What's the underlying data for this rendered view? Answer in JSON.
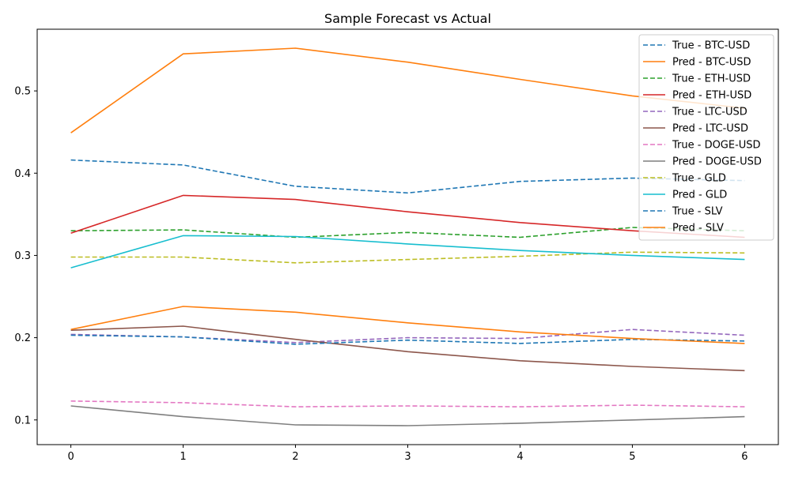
{
  "chart_data": {
    "type": "line",
    "title": "Sample Forecast vs Actual",
    "xlabel": "",
    "ylabel": "",
    "x": [
      0,
      1,
      2,
      3,
      4,
      5,
      6
    ],
    "xlim": [
      -0.3,
      6.3
    ],
    "ylim": [
      0.07,
      0.575
    ],
    "x_ticks": [
      "0",
      "1",
      "2",
      "3",
      "4",
      "5",
      "6"
    ],
    "y_ticks": [
      0.1,
      0.2,
      0.3,
      0.4,
      0.5
    ],
    "y_tick_labels": [
      "0.1",
      "0.2",
      "0.3",
      "0.4",
      "0.5"
    ],
    "grid": false,
    "legend_position": "top-right",
    "series": [
      {
        "name": "True - BTC-USD",
        "color": "#1f77b4",
        "dash": "dashed",
        "values": [
          0.416,
          0.41,
          0.384,
          0.376,
          0.39,
          0.394,
          0.391
        ]
      },
      {
        "name": "Pred - BTC-USD",
        "color": "#ff7f0e",
        "dash": "solid",
        "values": [
          0.449,
          0.545,
          0.552,
          0.535,
          0.514,
          0.494,
          0.479
        ]
      },
      {
        "name": "True - ETH-USD",
        "color": "#2ca02c",
        "dash": "dashed",
        "values": [
          0.33,
          0.331,
          0.322,
          0.328,
          0.322,
          0.334,
          0.33
        ]
      },
      {
        "name": "Pred - ETH-USD",
        "color": "#d62728",
        "dash": "solid",
        "values": [
          0.327,
          0.373,
          0.368,
          0.353,
          0.34,
          0.33,
          0.322
        ]
      },
      {
        "name": "True - LTC-USD",
        "color": "#9467bd",
        "dash": "dashed",
        "values": [
          0.204,
          0.201,
          0.194,
          0.2,
          0.199,
          0.21,
          0.203
        ]
      },
      {
        "name": "Pred - LTC-USD",
        "color": "#8c564b",
        "dash": "solid",
        "values": [
          0.209,
          0.214,
          0.198,
          0.183,
          0.172,
          0.165,
          0.16
        ]
      },
      {
        "name": "True - DOGE-USD",
        "color": "#e377c2",
        "dash": "dashed",
        "values": [
          0.123,
          0.121,
          0.116,
          0.117,
          0.116,
          0.118,
          0.116
        ]
      },
      {
        "name": "Pred - DOGE-USD",
        "color": "#7f7f7f",
        "dash": "solid",
        "values": [
          0.117,
          0.104,
          0.094,
          0.093,
          0.096,
          0.1,
          0.104
        ]
      },
      {
        "name": "True - GLD",
        "color": "#bcbd22",
        "dash": "dashed",
        "values": [
          0.298,
          0.298,
          0.291,
          0.295,
          0.299,
          0.304,
          0.303
        ]
      },
      {
        "name": "Pred - GLD",
        "color": "#17becf",
        "dash": "solid",
        "values": [
          0.285,
          0.324,
          0.323,
          0.314,
          0.306,
          0.3,
          0.295
        ]
      },
      {
        "name": "True - SLV",
        "color": "#1f77b4",
        "dash": "dashed",
        "values": [
          0.203,
          0.201,
          0.192,
          0.197,
          0.193,
          0.198,
          0.196
        ]
      },
      {
        "name": "Pred - SLV",
        "color": "#ff7f0e",
        "dash": "solid",
        "values": [
          0.21,
          0.238,
          0.231,
          0.218,
          0.207,
          0.199,
          0.193
        ]
      }
    ]
  }
}
